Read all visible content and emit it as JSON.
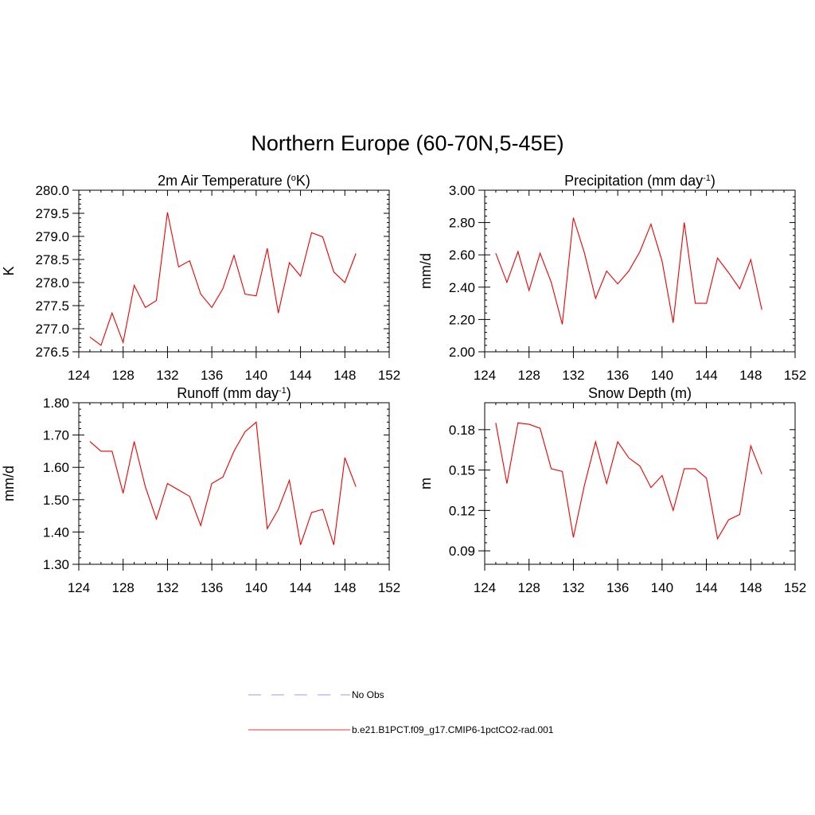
{
  "figure": {
    "title": "Northern Europe (60-70N,5-45E)"
  },
  "legend": [
    {
      "label": "No Obs",
      "color": "#9999ee",
      "style": "dashed"
    },
    {
      "label": "b.e21.B1PCT.f09_g17.CMIP6-1pctCO2-rad.001",
      "color": "#ee3333",
      "style": "solid"
    }
  ],
  "chart_data": [
    {
      "type": "line",
      "title": "2m Air Temperature (",
      "title_sup": "o",
      "title_suffix": "K)",
      "ylabel": "K",
      "xlim": [
        124,
        152
      ],
      "ylim": [
        276.5,
        280.0
      ],
      "xticks": [
        124,
        128,
        132,
        136,
        140,
        144,
        148,
        152
      ],
      "yticks": [
        276.5,
        277.0,
        277.5,
        278.0,
        278.5,
        279.0,
        279.5,
        280.0
      ],
      "ytick_labels": [
        "276.5",
        "277.0",
        "277.5",
        "278.0",
        "278.5",
        "279.0",
        "279.5",
        "280.0"
      ],
      "line_color": "#ee0000",
      "x": [
        125,
        126,
        127,
        128,
        129,
        130,
        131,
        132,
        133,
        134,
        135,
        136,
        137,
        138,
        139,
        140,
        141,
        142,
        143,
        144,
        145,
        146,
        147,
        148,
        149
      ],
      "y": [
        276.82,
        276.64,
        277.34,
        276.7,
        277.94,
        277.46,
        277.61,
        279.52,
        278.34,
        278.47,
        277.75,
        277.46,
        277.87,
        278.59,
        277.75,
        277.71,
        278.74,
        277.34,
        278.43,
        278.14,
        279.08,
        278.99,
        278.23,
        278.0,
        278.63
      ]
    },
    {
      "type": "line",
      "title": "Precipitation (mm day",
      "title_sup": "-1",
      "title_suffix": ")",
      "ylabel": "mm/d",
      "xlim": [
        124,
        152
      ],
      "ylim": [
        2.0,
        3.0
      ],
      "xticks": [
        124,
        128,
        132,
        136,
        140,
        144,
        148,
        152
      ],
      "yticks": [
        2.0,
        2.2,
        2.4,
        2.6,
        2.8,
        3.0
      ],
      "ytick_labels": [
        "2.00",
        "2.20",
        "2.40",
        "2.60",
        "2.80",
        "3.00"
      ],
      "line_color": "#ee0000",
      "x": [
        125,
        126,
        127,
        128,
        129,
        130,
        131,
        132,
        133,
        134,
        135,
        136,
        137,
        138,
        139,
        140,
        141,
        142,
        143,
        144,
        145,
        146,
        147,
        148,
        149
      ],
      "y": [
        2.61,
        2.43,
        2.62,
        2.38,
        2.61,
        2.43,
        2.17,
        2.83,
        2.61,
        2.33,
        2.5,
        2.42,
        2.5,
        2.62,
        2.79,
        2.56,
        2.18,
        2.8,
        2.3,
        2.3,
        2.58,
        2.49,
        2.39,
        2.57,
        2.26
      ]
    },
    {
      "type": "line",
      "title": "Runoff (mm day",
      "title_sup": "-1",
      "title_suffix": ")",
      "ylabel": "mm/d",
      "xlim": [
        124,
        152
      ],
      "ylim": [
        1.3,
        1.8
      ],
      "xticks": [
        124,
        128,
        132,
        136,
        140,
        144,
        148,
        152
      ],
      "yticks": [
        1.3,
        1.4,
        1.5,
        1.6,
        1.7,
        1.8
      ],
      "ytick_labels": [
        "1.30",
        "1.40",
        "1.50",
        "1.60",
        "1.70",
        "1.80"
      ],
      "line_color": "#ee0000",
      "x": [
        125,
        126,
        127,
        128,
        129,
        130,
        131,
        132,
        133,
        134,
        135,
        136,
        137,
        138,
        139,
        140,
        141,
        142,
        143,
        144,
        145,
        146,
        147,
        148,
        149
      ],
      "y": [
        1.68,
        1.65,
        1.65,
        1.52,
        1.68,
        1.54,
        1.44,
        1.55,
        1.53,
        1.51,
        1.42,
        1.55,
        1.57,
        1.65,
        1.71,
        1.74,
        1.41,
        1.47,
        1.56,
        1.36,
        1.46,
        1.47,
        1.36,
        1.63,
        1.54
      ]
    },
    {
      "type": "line",
      "title": "Snow Depth (m)",
      "title_sup": "",
      "title_suffix": "",
      "ylabel": "m",
      "xlim": [
        124,
        152
      ],
      "ylim": [
        0.08,
        0.2
      ],
      "xticks": [
        124,
        128,
        132,
        136,
        140,
        144,
        148,
        152
      ],
      "yticks": [
        0.09,
        0.12,
        0.15,
        0.18
      ],
      "ytick_labels": [
        "0.09",
        "0.12",
        "0.15",
        "0.18"
      ],
      "line_color": "#ee0000",
      "x": [
        125,
        126,
        127,
        128,
        129,
        130,
        131,
        132,
        133,
        134,
        135,
        136,
        137,
        138,
        139,
        140,
        141,
        142,
        143,
        144,
        145,
        146,
        147,
        148,
        149
      ],
      "y": [
        0.185,
        0.14,
        0.185,
        0.184,
        0.181,
        0.151,
        0.149,
        0.1,
        0.139,
        0.171,
        0.14,
        0.171,
        0.159,
        0.153,
        0.137,
        0.146,
        0.12,
        0.151,
        0.151,
        0.144,
        0.099,
        0.113,
        0.117,
        0.168,
        0.147
      ]
    }
  ]
}
